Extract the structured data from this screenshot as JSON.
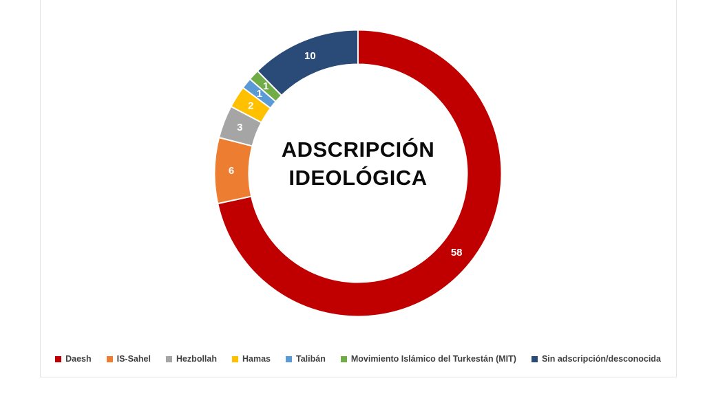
{
  "page": {
    "background": "#FFFFFF",
    "frame_border_color": "#E4E4E4"
  },
  "chart_data": {
    "type": "pie",
    "donut": true,
    "hole_radius_ratio": 0.76,
    "title": "ADSCRIPCIÓN IDEOLÓGICA",
    "title_lines": [
      "ADSCRIPCIÓN",
      "IDEOLÓGICA"
    ],
    "title_color": "#0A0A0A",
    "start_angle_deg": 0,
    "direction": "clockwise",
    "total": 81,
    "segments": [
      {
        "label": "Daesh",
        "value": 58,
        "color": "#C00000"
      },
      {
        "label": "IS-Sahel",
        "value": 6,
        "color": "#ED7D31"
      },
      {
        "label": "Hezbollah",
        "value": 3,
        "color": "#A5A5A5"
      },
      {
        "label": "Hamas",
        "value": 2,
        "color": "#FFC000"
      },
      {
        "label": "Talibán",
        "value": 1,
        "color": "#5B9BD5"
      },
      {
        "label": "Movimiento Islámico del Turkestán (MIT)",
        "value": 1,
        "color": "#70AD47"
      },
      {
        "label": "Sin adscripción/desconocida",
        "value": 10,
        "color": "#2A4A78"
      }
    ],
    "data_label_color": "#FFFFFF",
    "segment_separator_color": "#FFFFFF",
    "legend_position": "bottom",
    "legend_text_color": "#404040"
  }
}
